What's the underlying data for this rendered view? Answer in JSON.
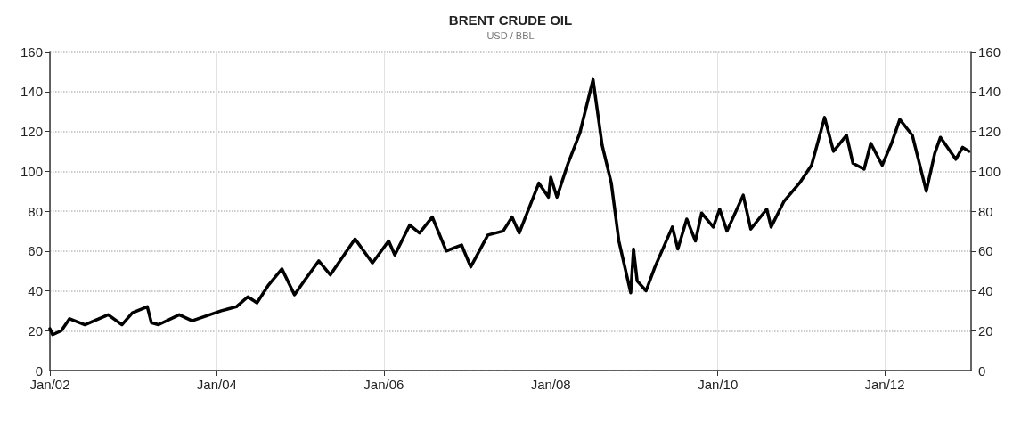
{
  "chart_data": {
    "type": "line",
    "title": "BRENT CRUDE OIL",
    "subtitle": "USD / BBL",
    "x": [
      "2002-01-01",
      "2002-01-13",
      "2002-02-20",
      "2002-03-28",
      "2002-06-03",
      "2002-09-13",
      "2002-11-12",
      "2002-12-28",
      "2003-03-03",
      "2003-03-21",
      "2003-04-21",
      "2003-07-21",
      "2003-09-15",
      "2004-01-21",
      "2004-03-27",
      "2004-05-16",
      "2004-06-25",
      "2004-08-15",
      "2004-10-12",
      "2004-12-06",
      "2005-01-18",
      "2005-03-22",
      "2005-05-12",
      "2005-08-28",
      "2005-11-12",
      "2006-01-22",
      "2006-02-18",
      "2006-04-24",
      "2006-06-06",
      "2006-08-01",
      "2006-10-01",
      "2006-12-07",
      "2007-01-16",
      "2007-04-01",
      "2007-06-07",
      "2007-07-16",
      "2007-08-16",
      "2007-11-10",
      "2007-12-22",
      "2008-01-01",
      "2008-01-28",
      "2008-03-17",
      "2008-05-07",
      "2008-07-04",
      "2008-08-13",
      "2008-09-22",
      "2008-10-25",
      "2008-12-16",
      "2008-12-28",
      "2009-01-13",
      "2009-02-21",
      "2009-04-01",
      "2009-06-16",
      "2009-07-10",
      "2009-08-18",
      "2009-09-25",
      "2009-10-22",
      "2009-12-12",
      "2010-01-09",
      "2010-02-10",
      "2010-04-22",
      "2010-05-25",
      "2010-08-03",
      "2010-08-22",
      "2010-10-18",
      "2010-12-24",
      "2011-02-15",
      "2011-04-13",
      "2011-05-22",
      "2011-07-18",
      "2011-08-15",
      "2011-10-03",
      "2011-11-01",
      "2011-12-21",
      "2012-01-31",
      "2012-03-07",
      "2012-05-01",
      "2012-05-25",
      "2012-07-01",
      "2012-08-07",
      "2012-09-01",
      "2012-11-07",
      "2012-12-07",
      "2013-01-04"
    ],
    "series": [
      {
        "color": "#000000",
        "values": [
          21,
          18,
          20,
          26,
          23,
          28,
          23,
          29,
          32,
          24,
          23,
          28,
          25,
          30,
          32,
          37,
          34,
          43,
          51,
          38,
          45,
          55,
          48,
          66,
          54,
          65,
          58,
          73,
          69,
          77,
          60,
          63,
          52,
          68,
          70,
          77,
          69,
          94,
          87,
          97,
          87,
          104,
          119,
          146,
          113,
          94,
          65,
          39,
          61,
          45,
          40,
          52,
          72,
          61,
          76,
          65,
          79,
          72,
          81,
          70,
          88,
          71,
          81,
          72,
          85,
          94,
          103,
          127,
          110,
          118,
          104,
          101,
          114,
          103,
          114,
          126,
          118,
          107,
          90,
          109,
          117,
          106,
          112,
          110
        ]
      }
    ],
    "xlim": [
      "2002-01-01",
      "2013-01-13"
    ],
    "xticks": [
      {
        "value": "2002-01-01",
        "label": "Jan/02"
      },
      {
        "value": "2004-01-01",
        "label": "Jan/04"
      },
      {
        "value": "2006-01-01",
        "label": "Jan/06"
      },
      {
        "value": "2008-01-01",
        "label": "Jan/08"
      },
      {
        "value": "2010-01-01",
        "label": "Jan/10"
      },
      {
        "value": "2012-01-01",
        "label": "Jan/12"
      }
    ],
    "ylim": [
      0,
      160
    ],
    "yticks": [
      0,
      20,
      40,
      60,
      80,
      100,
      120,
      140,
      160
    ],
    "y2lim": [
      0,
      160
    ],
    "y2ticks": [
      0,
      20,
      40,
      60,
      80,
      100,
      120,
      140,
      160
    ],
    "grid": true,
    "marker": "none",
    "line_style": "solid"
  }
}
